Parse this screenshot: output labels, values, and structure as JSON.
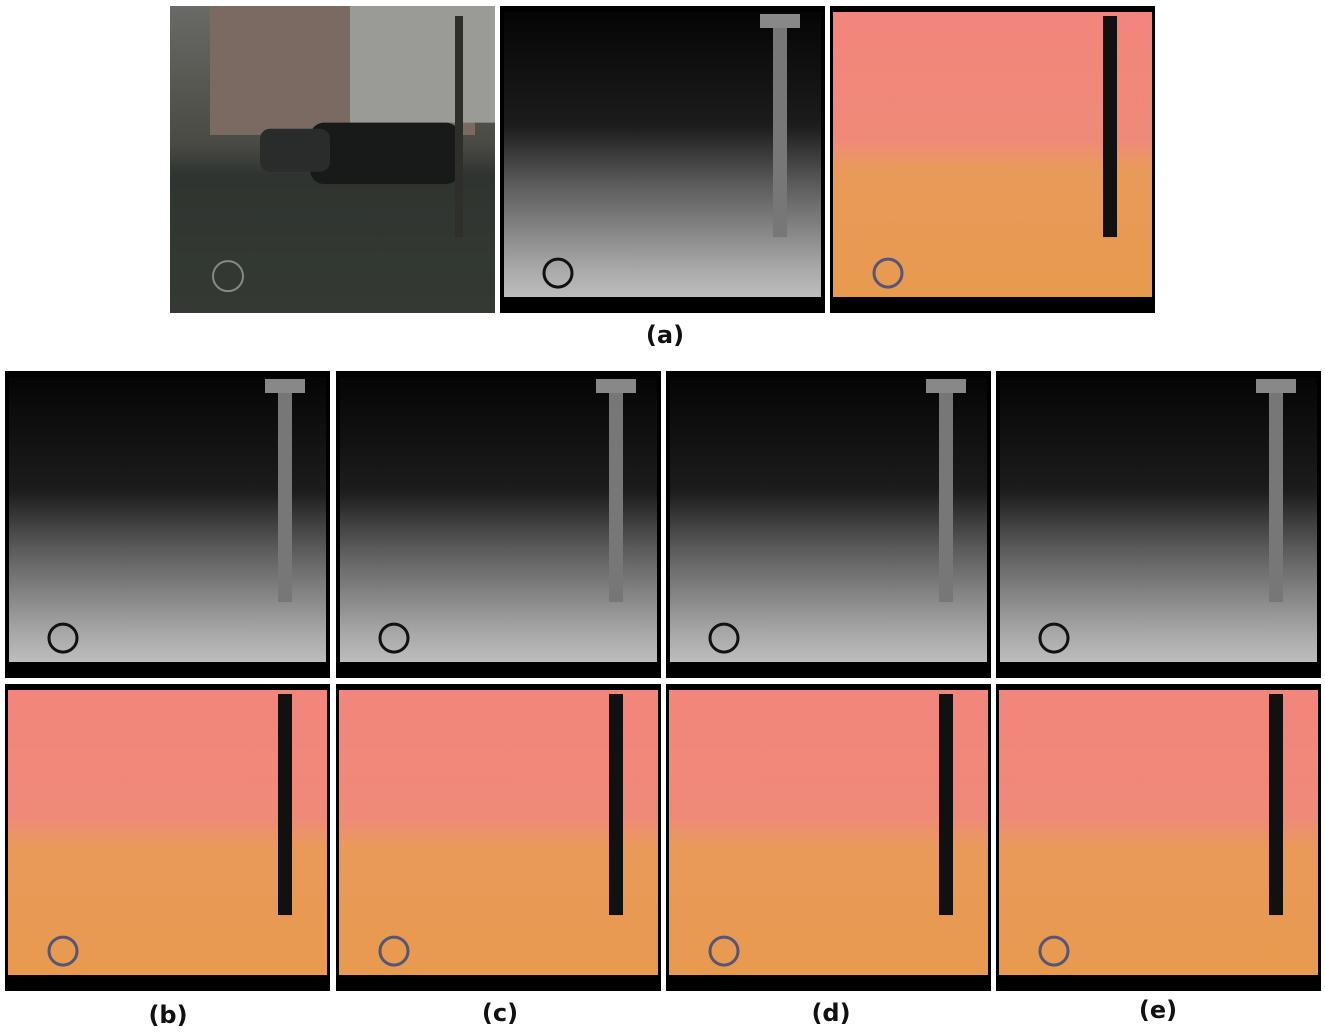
{
  "captions": [
    "(a)",
    "(b)",
    "(c)",
    "(d)",
    "(e)"
  ]
}
